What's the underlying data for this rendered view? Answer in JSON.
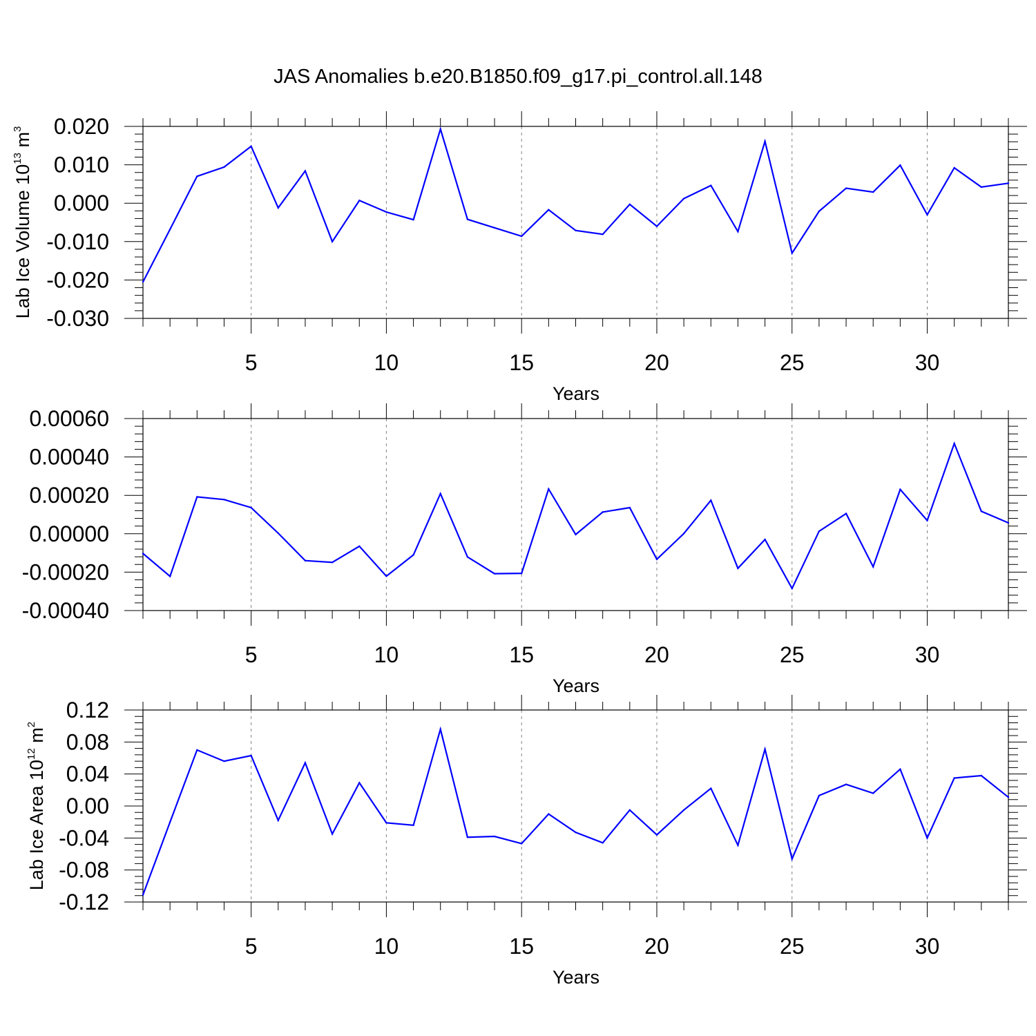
{
  "figure_title": "JAS Anomalies b.e20.B1850.f09_g17.pi_control.all.148",
  "colors": {
    "series": "#0000ff",
    "axes": "#000000",
    "grid": "#808080"
  },
  "chart_data": [
    {
      "type": "line",
      "title": "JAS Anomalies b.e20.B1850.f09_g17.pi_control.all.148",
      "xlabel": "Years",
      "ylabel_parts": [
        "Lab Ice Volume 10",
        "13",
        " m",
        "3"
      ],
      "xlim": [
        1,
        33
      ],
      "ylim": [
        -0.03,
        0.02
      ],
      "xticks": [
        5,
        10,
        15,
        20,
        25,
        30
      ],
      "xtick_labels": [
        "5",
        "10",
        "15",
        "20",
        "25",
        "30"
      ],
      "yticks": [
        -0.03,
        -0.02,
        -0.01,
        0.0,
        0.01,
        0.02
      ],
      "ytick_labels": [
        "-0.030",
        "-0.020",
        "-0.010",
        "0.000",
        "0.010",
        "0.020"
      ],
      "grid": "vertical dashed at major x ticks",
      "x": [
        1,
        2,
        3,
        4,
        5,
        6,
        7,
        8,
        9,
        10,
        11,
        12,
        13,
        14,
        15,
        16,
        17,
        18,
        19,
        20,
        21,
        22,
        23,
        24,
        25,
        26,
        27,
        28,
        29,
        30,
        31,
        32,
        33
      ],
      "y": [
        -0.0205,
        -0.0068,
        0.007,
        0.0094,
        0.0148,
        -0.0012,
        0.0084,
        -0.01,
        0.0007,
        -0.0023,
        -0.0043,
        0.0193,
        -0.0042,
        -0.0064,
        -0.0086,
        -0.0017,
        -0.0071,
        -0.0081,
        -0.0003,
        -0.006,
        0.0012,
        0.0046,
        -0.0074,
        0.0161,
        -0.013,
        -0.0021,
        0.0039,
        0.0029,
        0.0099,
        -0.003,
        0.0092,
        0.0042,
        0.0052
      ]
    },
    {
      "type": "line",
      "xlabel": "Years",
      "xlim": [
        1,
        33
      ],
      "ylim": [
        -0.0004,
        0.0006
      ],
      "xticks": [
        5,
        10,
        15,
        20,
        25,
        30
      ],
      "xtick_labels": [
        "5",
        "10",
        "15",
        "20",
        "25",
        "30"
      ],
      "yticks": [
        -0.0004,
        -0.0002,
        0.0,
        0.0002,
        0.0004,
        0.0006
      ],
      "ytick_labels": [
        "-0.00040",
        "-0.00020",
        "0.00000",
        "0.00020",
        "0.00040",
        "0.00060"
      ],
      "grid": "vertical dashed at major x ticks",
      "x": [
        1,
        2,
        3,
        4,
        5,
        6,
        7,
        8,
        9,
        10,
        11,
        12,
        13,
        14,
        15,
        16,
        17,
        18,
        19,
        20,
        21,
        22,
        23,
        24,
        25,
        26,
        27,
        28,
        29,
        30,
        31,
        32,
        33
      ],
      "y": [
        -0.000103,
        -0.000222,
        0.000192,
        0.000178,
        0.000136,
        3e-06,
        -0.00014,
        -0.000149,
        -6.5e-05,
        -0.000221,
        -0.00011,
        0.000209,
        -0.000121,
        -0.000208,
        -0.000206,
        0.000233,
        -4e-06,
        0.000113,
        0.000136,
        -0.000133,
        1e-06,
        0.000174,
        -0.00018,
        -3e-05,
        -0.000285,
        1.3e-05,
        0.000105,
        -0.000172,
        0.000231,
        6.9e-05,
        0.00047,
        0.000117,
        5.7e-05
      ]
    },
    {
      "type": "line",
      "xlabel": "Years",
      "ylabel_parts": [
        "Lab Ice Area 10",
        "12",
        " m",
        "2"
      ],
      "xlim": [
        1,
        33
      ],
      "ylim": [
        -0.12,
        0.12
      ],
      "xticks": [
        5,
        10,
        15,
        20,
        25,
        30
      ],
      "xtick_labels": [
        "5",
        "10",
        "15",
        "20",
        "25",
        "30"
      ],
      "yticks": [
        -0.12,
        -0.08,
        -0.04,
        0.0,
        0.04,
        0.08,
        0.12
      ],
      "ytick_labels": [
        "-0.12",
        "-0.08",
        "-0.04",
        "0.00",
        "0.04",
        "0.08",
        "0.12"
      ],
      "grid": "vertical dashed at major x ticks",
      "x": [
        1,
        2,
        3,
        4,
        5,
        6,
        7,
        8,
        9,
        10,
        11,
        12,
        13,
        14,
        15,
        16,
        17,
        18,
        19,
        20,
        21,
        22,
        23,
        24,
        25,
        26,
        27,
        28,
        29,
        30,
        31,
        32,
        33
      ],
      "y": [
        -0.111,
        -0.02,
        0.07,
        0.056,
        0.063,
        -0.018,
        0.054,
        -0.035,
        0.029,
        -0.021,
        -0.024,
        0.096,
        -0.039,
        -0.038,
        -0.047,
        -0.01,
        -0.033,
        -0.046,
        -0.005,
        -0.036,
        -0.005,
        0.022,
        -0.049,
        0.071,
        -0.066,
        0.013,
        0.027,
        0.016,
        0.046,
        -0.04,
        0.035,
        0.038,
        0.011
      ]
    }
  ]
}
